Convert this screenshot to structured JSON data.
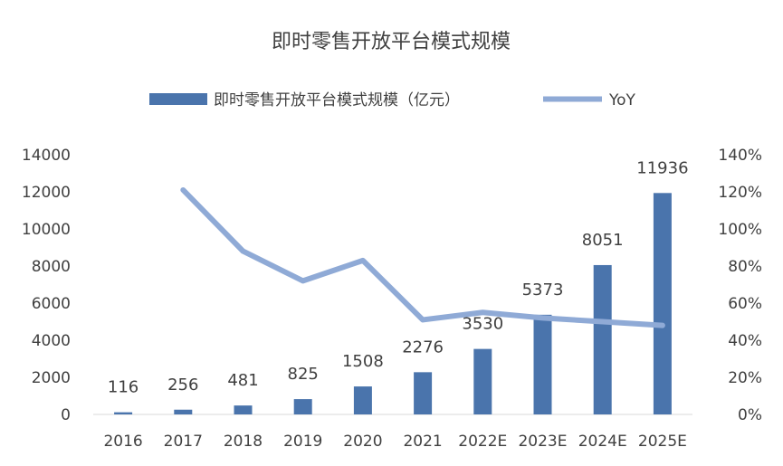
{
  "chart_data": {
    "type": "bar",
    "title": "即时零售开放平台模式规模",
    "categories": [
      "2016",
      "2017",
      "2018",
      "2019",
      "2020",
      "2021",
      "2022E",
      "2023E",
      "2024E",
      "2025E"
    ],
    "series": [
      {
        "name": "即时零售开放平台模式规模（亿元）",
        "type": "bar",
        "axis": "left",
        "color": "#4a74ac",
        "values": [
          116,
          256,
          481,
          825,
          1508,
          2276,
          3530,
          5373,
          8051,
          11936
        ]
      },
      {
        "name": "YoY",
        "type": "line",
        "axis": "right",
        "color": "#8faad6",
        "values": [
          null,
          121,
          88,
          72,
          83,
          51,
          55,
          52,
          50,
          48
        ]
      }
    ],
    "data_labels": [
      "116",
      "256",
      "481",
      "825",
      "1508",
      "2276",
      "3530",
      "5373",
      "8051",
      "11936"
    ],
    "y_left": {
      "lim": [
        0,
        14000
      ],
      "ticks": [
        "0",
        "2000",
        "4000",
        "6000",
        "8000",
        "10000",
        "12000",
        "14000"
      ]
    },
    "y_right": {
      "lim": [
        0,
        140
      ],
      "unit": "%",
      "ticks": [
        "0%",
        "20%",
        "40%",
        "60%",
        "80%",
        "100%",
        "120%",
        "140%"
      ]
    },
    "grid": false,
    "legend": "top"
  }
}
